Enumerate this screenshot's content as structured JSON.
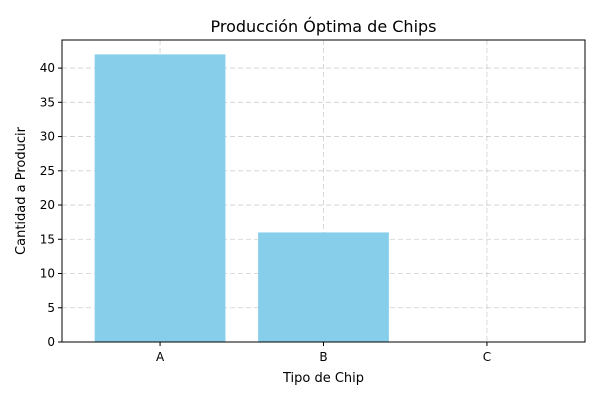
{
  "chart_data": {
    "type": "bar",
    "title": "Producción Óptima de Chips",
    "xlabel": "Tipo de Chip",
    "ylabel": "Cantidad a Producir",
    "categories": [
      "A",
      "B",
      "C"
    ],
    "values": [
      42,
      16,
      0
    ],
    "ylim": [
      0,
      44.1
    ],
    "yticks": [
      0,
      5,
      10,
      15,
      20,
      25,
      30,
      35,
      40
    ],
    "grid": true,
    "bar_color": "#87CEEB"
  }
}
